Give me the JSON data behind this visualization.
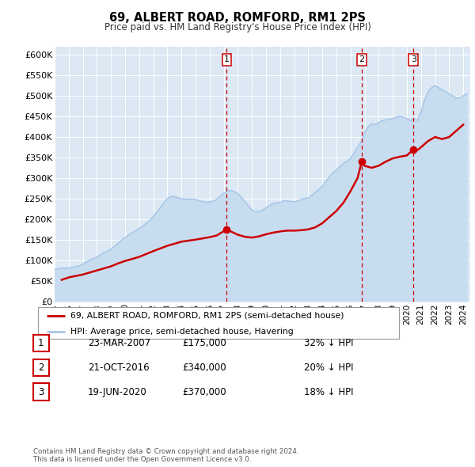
{
  "title": "69, ALBERT ROAD, ROMFORD, RM1 2PS",
  "subtitle": "Price paid vs. HM Land Registry's House Price Index (HPI)",
  "ylim": [
    0,
    620000
  ],
  "xlim_start": 1995.0,
  "xlim_end": 2024.5,
  "yticks": [
    0,
    50000,
    100000,
    150000,
    200000,
    250000,
    300000,
    350000,
    400000,
    450000,
    500000,
    550000,
    600000
  ],
  "ytick_labels": [
    "£0",
    "£50K",
    "£100K",
    "£150K",
    "£200K",
    "£250K",
    "£300K",
    "£350K",
    "£400K",
    "£450K",
    "£500K",
    "£550K",
    "£600K"
  ],
  "xtick_years": [
    1995,
    1996,
    1997,
    1998,
    1999,
    2000,
    2001,
    2002,
    2003,
    2004,
    2005,
    2006,
    2007,
    2008,
    2009,
    2010,
    2011,
    2012,
    2013,
    2014,
    2015,
    2016,
    2017,
    2018,
    2019,
    2020,
    2021,
    2022,
    2023,
    2024
  ],
  "hpi_color": "#A8C8E8",
  "hpi_fill_color": "#C8DCF0",
  "price_color": "#CC0000",
  "bg_color": "#DCE8F4",
  "grid_color": "#FFFFFF",
  "sale_points": [
    {
      "year": 2007.22,
      "price": 175000,
      "label": "1"
    },
    {
      "year": 2016.8,
      "price": 340000,
      "label": "2"
    },
    {
      "year": 2020.47,
      "price": 370000,
      "label": "3"
    }
  ],
  "vline_color": "#CC0000",
  "legend_label_price": "69, ALBERT ROAD, ROMFORD, RM1 2PS (semi-detached house)",
  "legend_label_hpi": "HPI: Average price, semi-detached house, Havering",
  "table_rows": [
    {
      "num": "1",
      "date": "23-MAR-2007",
      "price": "£175,000",
      "hpi": "32% ↓ HPI"
    },
    {
      "num": "2",
      "date": "21-OCT-2016",
      "price": "£340,000",
      "hpi": "20% ↓ HPI"
    },
    {
      "num": "3",
      "date": "19-JUN-2020",
      "price": "£370,000",
      "hpi": "18% ↓ HPI"
    }
  ],
  "footnote": "Contains HM Land Registry data © Crown copyright and database right 2024.\nThis data is licensed under the Open Government Licence v3.0.",
  "hpi_data_x": [
    1995.0,
    1995.25,
    1995.5,
    1995.75,
    1996.0,
    1996.25,
    1996.5,
    1996.75,
    1997.0,
    1997.25,
    1997.5,
    1997.75,
    1998.0,
    1998.25,
    1998.5,
    1998.75,
    1999.0,
    1999.25,
    1999.5,
    1999.75,
    2000.0,
    2000.25,
    2000.5,
    2000.75,
    2001.0,
    2001.25,
    2001.5,
    2001.75,
    2002.0,
    2002.25,
    2002.5,
    2002.75,
    2003.0,
    2003.25,
    2003.5,
    2003.75,
    2004.0,
    2004.25,
    2004.5,
    2004.75,
    2005.0,
    2005.25,
    2005.5,
    2005.75,
    2006.0,
    2006.25,
    2006.5,
    2006.75,
    2007.0,
    2007.25,
    2007.5,
    2007.75,
    2008.0,
    2008.25,
    2008.5,
    2008.75,
    2009.0,
    2009.25,
    2009.5,
    2009.75,
    2010.0,
    2010.25,
    2010.5,
    2010.75,
    2011.0,
    2011.25,
    2011.5,
    2011.75,
    2012.0,
    2012.25,
    2012.5,
    2012.75,
    2013.0,
    2013.25,
    2013.5,
    2013.75,
    2014.0,
    2014.25,
    2014.5,
    2014.75,
    2015.0,
    2015.25,
    2015.5,
    2015.75,
    2016.0,
    2016.25,
    2016.5,
    2016.75,
    2017.0,
    2017.25,
    2017.5,
    2017.75,
    2018.0,
    2018.25,
    2018.5,
    2018.75,
    2019.0,
    2019.25,
    2019.5,
    2019.75,
    2020.0,
    2020.25,
    2020.5,
    2020.75,
    2021.0,
    2021.25,
    2021.5,
    2021.75,
    2022.0,
    2022.25,
    2022.5,
    2022.75,
    2023.0,
    2023.25,
    2023.5,
    2023.75,
    2024.0,
    2024.25
  ],
  "hpi_data_y": [
    78000,
    79000,
    80000,
    80500,
    81000,
    82000,
    84000,
    86000,
    90000,
    96000,
    100000,
    104000,
    108000,
    113000,
    118000,
    122000,
    127000,
    134000,
    141000,
    149000,
    155000,
    161000,
    167000,
    172000,
    177000,
    183000,
    190000,
    197000,
    206000,
    217000,
    228000,
    240000,
    250000,
    255000,
    255000,
    252000,
    250000,
    248000,
    248000,
    248000,
    248000,
    245000,
    243000,
    241000,
    242000,
    244000,
    248000,
    256000,
    263000,
    268000,
    270000,
    267000,
    262000,
    253000,
    242000,
    232000,
    222000,
    218000,
    218000,
    222000,
    228000,
    233000,
    238000,
    240000,
    240000,
    245000,
    244000,
    243000,
    242000,
    244000,
    248000,
    250000,
    252000,
    258000,
    265000,
    272000,
    280000,
    292000,
    303000,
    312000,
    320000,
    328000,
    336000,
    341000,
    348000,
    360000,
    375000,
    388000,
    410000,
    425000,
    432000,
    430000,
    435000,
    440000,
    442000,
    443000,
    445000,
    448000,
    450000,
    448000,
    445000,
    440000,
    445000,
    440000,
    460000,
    490000,
    510000,
    520000,
    525000,
    520000,
    515000,
    510000,
    505000,
    500000,
    495000,
    495000,
    500000,
    505000
  ],
  "price_data_x": [
    1995.5,
    1996.0,
    1997.0,
    1998.0,
    1998.5,
    1999.0,
    1999.5,
    2000.0,
    2001.0,
    2002.0,
    2003.0,
    2004.0,
    2005.0,
    2005.5,
    2006.0,
    2006.5,
    2007.22,
    2007.5,
    2008.0,
    2008.5,
    2009.0,
    2009.5,
    2010.0,
    2010.5,
    2011.0,
    2011.5,
    2012.0,
    2012.5,
    2013.0,
    2013.5,
    2014.0,
    2014.5,
    2015.0,
    2015.5,
    2016.0,
    2016.5,
    2016.8,
    2017.0,
    2017.5,
    2018.0,
    2018.5,
    2019.0,
    2019.5,
    2020.0,
    2020.47,
    2020.75,
    2021.0,
    2021.5,
    2022.0,
    2022.5,
    2023.0,
    2023.5,
    2024.0
  ],
  "price_data_y": [
    52000,
    58000,
    65000,
    75000,
    80000,
    85000,
    92000,
    98000,
    108000,
    122000,
    135000,
    145000,
    150000,
    153000,
    156000,
    160000,
    175000,
    170000,
    162000,
    157000,
    155000,
    158000,
    163000,
    167000,
    170000,
    172000,
    172000,
    173000,
    175000,
    180000,
    190000,
    205000,
    220000,
    240000,
    268000,
    300000,
    340000,
    330000,
    325000,
    330000,
    340000,
    348000,
    352000,
    355000,
    370000,
    368000,
    375000,
    390000,
    400000,
    395000,
    400000,
    415000,
    430000
  ]
}
